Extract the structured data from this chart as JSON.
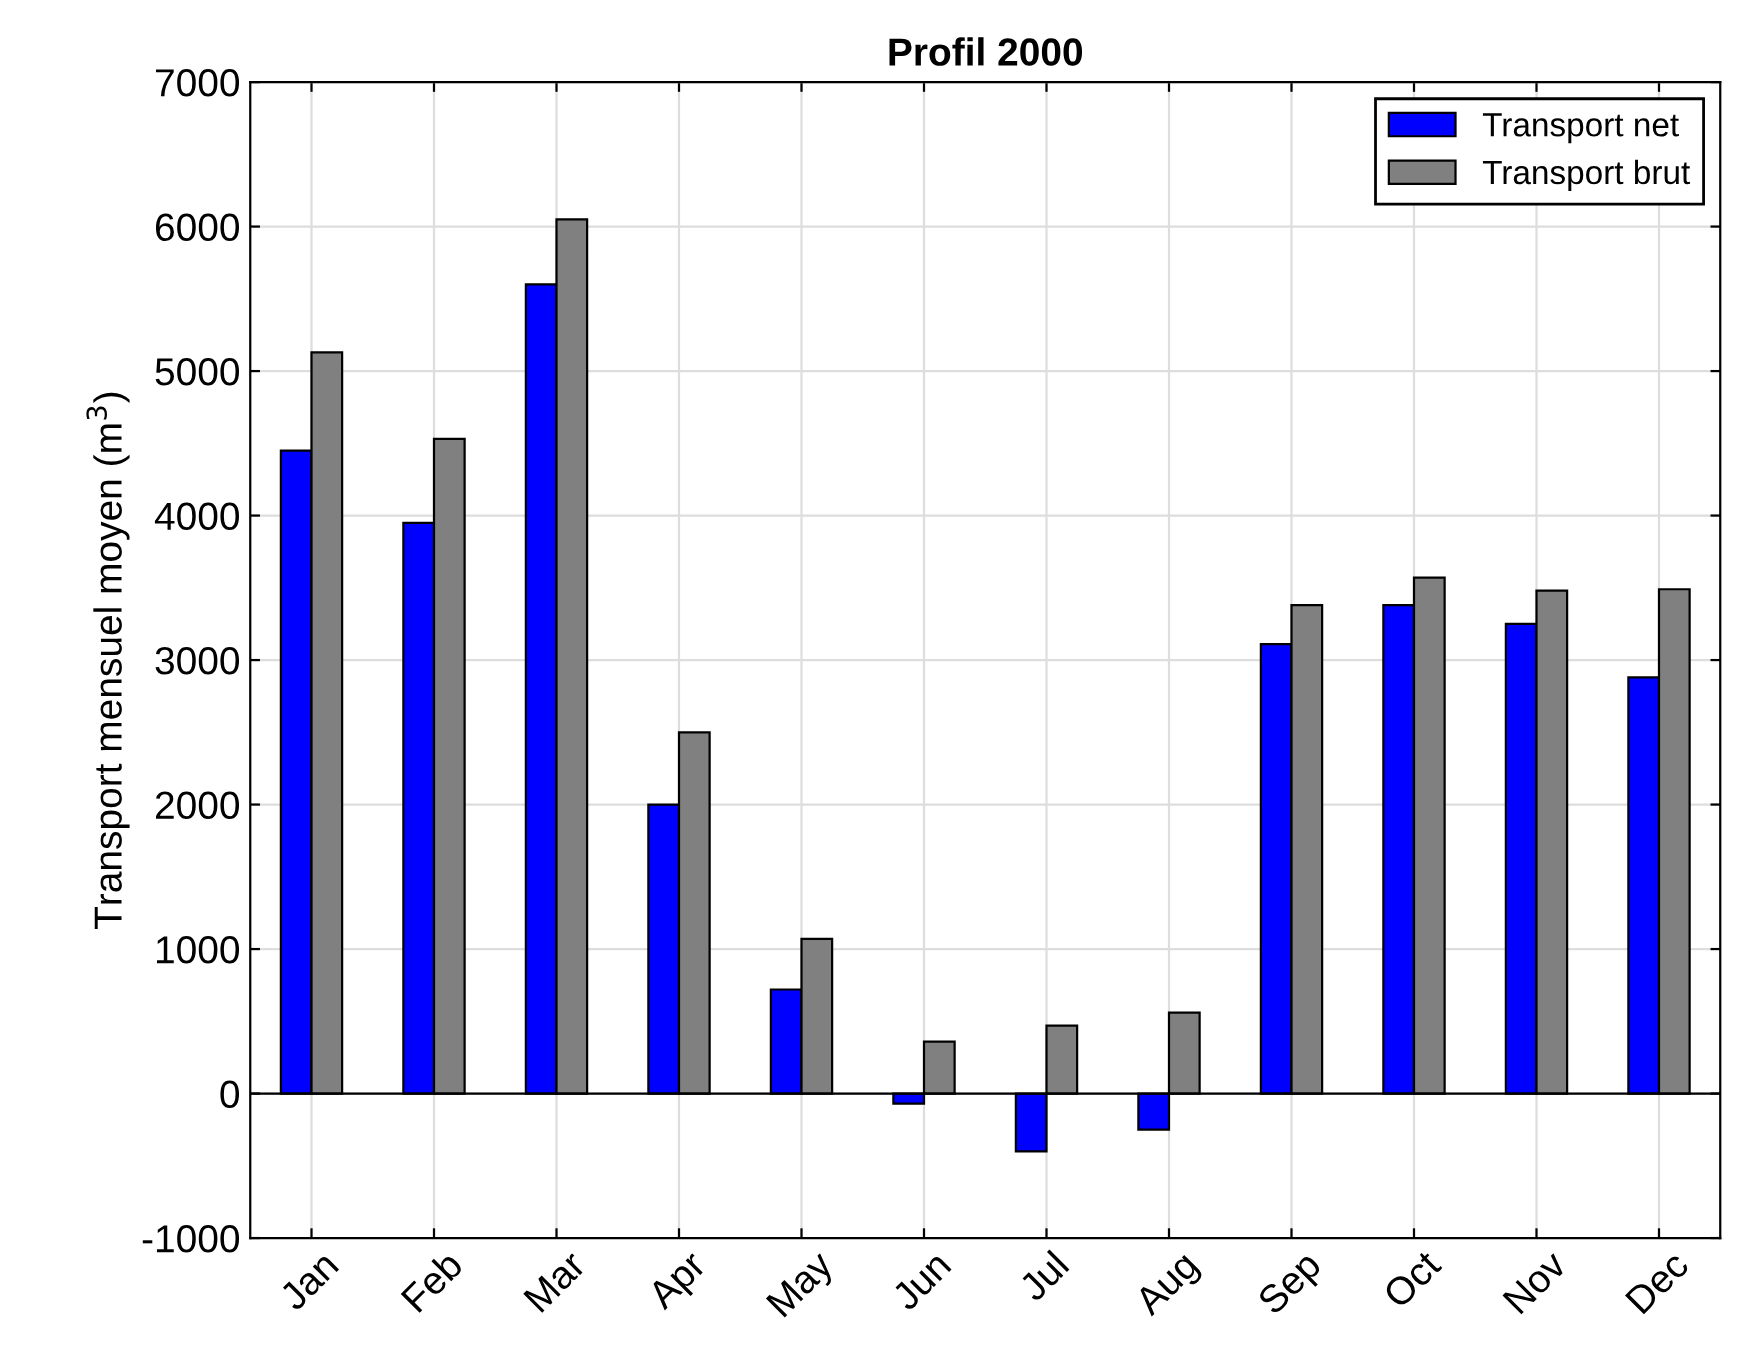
{
  "chart_data": {
    "type": "bar",
    "title": "Profil 2000",
    "ylabel": "Transport mensuel moyen (m$^{3}$)",
    "categories": [
      "Jan",
      "Feb",
      "Mar",
      "Apr",
      "May",
      "Jun",
      "Jul",
      "Aug",
      "Sep",
      "Oct",
      "Nov",
      "Dec"
    ],
    "series": [
      {
        "name": "Transport net",
        "color": "#0000ff",
        "values": [
          4450,
          3950,
          5600,
          2000,
          720,
          -70,
          -400,
          -250,
          3110,
          3380,
          3250,
          2880
        ]
      },
      {
        "name": "Transport brut",
        "color": "#808080",
        "values": [
          5130,
          4530,
          6050,
          2500,
          1070,
          360,
          470,
          560,
          3380,
          3570,
          3480,
          3490
        ]
      }
    ],
    "ylim": [
      -1000,
      7000
    ],
    "yticks": [
      -1000,
      0,
      1000,
      2000,
      3000,
      4000,
      5000,
      6000,
      7000
    ],
    "grid": true,
    "legend": "top right"
  }
}
